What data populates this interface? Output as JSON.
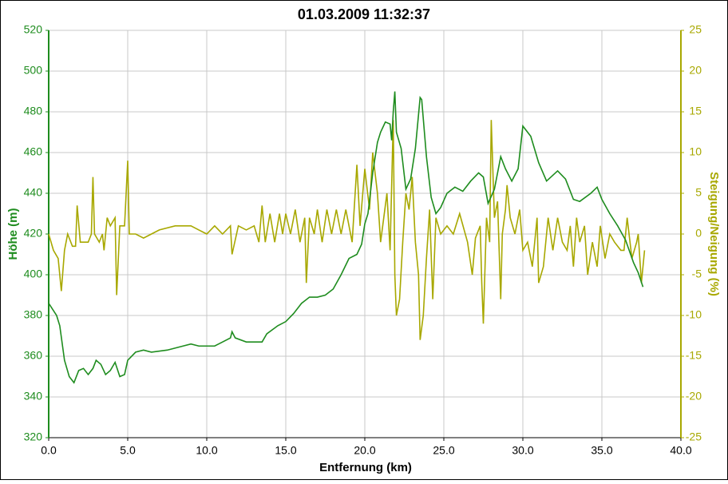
{
  "chart_data": {
    "type": "line",
    "title": "01.03.2009 11:32:37",
    "x_label": "Entfernung (km)",
    "y_label": "Höhe (m)",
    "y2_label": "Steigung/Neigung (%)",
    "grid": true,
    "xlim": [
      0,
      40
    ],
    "xticks": [
      {
        "value": 0,
        "label": "0.0"
      },
      {
        "value": 5,
        "label": "5.0"
      },
      {
        "value": 10,
        "label": "10.0"
      },
      {
        "value": 15,
        "label": "15.0"
      },
      {
        "value": 20,
        "label": "20.0"
      },
      {
        "value": 25,
        "label": "25.0"
      },
      {
        "value": 30,
        "label": "30.0"
      },
      {
        "value": 35,
        "label": "35.0"
      },
      {
        "value": 40,
        "label": "40.0"
      }
    ],
    "ylim": [
      320,
      520
    ],
    "yticks": [
      320,
      340,
      360,
      380,
      400,
      420,
      440,
      460,
      480,
      500,
      520
    ],
    "y2lim": [
      -25,
      25
    ],
    "y2ticks": [
      -25,
      -20,
      -15,
      -10,
      -5,
      0,
      5,
      10,
      15,
      20,
      25
    ],
    "y_color": "#1e8c1e",
    "y2_color": "#a8a800",
    "series": [
      {
        "name": "Höhe",
        "color": "#1e8c1e",
        "x": [
          0,
          0.5,
          0.7,
          1.0,
          1.3,
          1.6,
          1.9,
          2.2,
          2.5,
          2.8,
          3.0,
          3.3,
          3.6,
          3.9,
          4.2,
          4.5,
          4.8,
          5.0,
          5.5,
          6.0,
          6.5,
          7.5,
          8.5,
          9.0,
          9.5,
          10.5,
          11.0,
          11.5,
          11.6,
          11.8,
          12.5,
          13.5,
          13.8,
          14.5,
          15.0,
          15.5,
          16.0,
          16.5,
          17.0,
          17.5,
          18.0,
          18.5,
          19.0,
          19.5,
          19.8,
          20.0,
          20.2,
          20.5,
          20.8,
          21.0,
          21.3,
          21.6,
          21.7,
          21.8,
          21.9,
          22.0,
          22.3,
          22.6,
          22.9,
          23.2,
          23.5,
          23.6,
          23.9,
          24.2,
          24.5,
          24.8,
          25.2,
          25.7,
          26.2,
          26.7,
          27.2,
          27.5,
          27.8,
          28.2,
          28.6,
          28.9,
          29.3,
          29.7,
          30.0,
          30.5,
          31.0,
          31.5,
          32.2,
          32.7,
          33.2,
          33.6,
          34.3,
          34.7,
          35.0,
          35.5,
          36.0,
          36.5,
          37.0,
          37.3,
          37.6
        ],
        "values": [
          386,
          380,
          375,
          358,
          350,
          347,
          353,
          354,
          351,
          354,
          358,
          356,
          351,
          353,
          357,
          350,
          351,
          358,
          362,
          363,
          362,
          363,
          365,
          366,
          365,
          365,
          367,
          369,
          372,
          369,
          367,
          367,
          371,
          375,
          377,
          381,
          386,
          389,
          389,
          390,
          393,
          400,
          408,
          410,
          415,
          425,
          430,
          450,
          465,
          470,
          475,
          474,
          466,
          480,
          490,
          470,
          462,
          442,
          447,
          462,
          487,
          486,
          458,
          438,
          430,
          433,
          440,
          443,
          441,
          446,
          450,
          448,
          435,
          442,
          458,
          452,
          446,
          452,
          473,
          468,
          455,
          446,
          451,
          447,
          437,
          436,
          440,
          443,
          437,
          430,
          424,
          417,
          406,
          401,
          394
        ]
      },
      {
        "name": "Steigung/Neigung",
        "color": "#a8a800",
        "axis": "y2",
        "x": [
          0,
          0.3,
          0.6,
          0.8,
          1.0,
          1.2,
          1.5,
          1.7,
          1.8,
          2.0,
          2.5,
          2.7,
          2.8,
          2.9,
          3.2,
          3.4,
          3.5,
          3.7,
          3.9,
          4.2,
          4.3,
          4.5,
          4.8,
          5.0,
          5.1,
          5.5,
          6.0,
          6.5,
          7.0,
          8.0,
          9.0,
          9.5,
          10.0,
          10.5,
          11.0,
          11.5,
          11.6,
          12.0,
          12.5,
          13.0,
          13.3,
          13.5,
          13.7,
          14.0,
          14.3,
          14.6,
          14.8,
          15.0,
          15.3,
          15.6,
          15.9,
          16.2,
          16.3,
          16.5,
          16.8,
          17.0,
          17.3,
          17.6,
          17.9,
          18.2,
          18.5,
          18.8,
          19.2,
          19.5,
          19.7,
          20.0,
          20.3,
          20.5,
          20.8,
          21.0,
          21.2,
          21.4,
          21.6,
          21.8,
          21.9,
          22.0,
          22.2,
          22.4,
          22.6,
          22.8,
          23.0,
          23.2,
          23.4,
          23.5,
          23.7,
          23.9,
          24.1,
          24.3,
          24.5,
          24.8,
          25.2,
          25.6,
          26.0,
          26.5,
          26.8,
          27.0,
          27.3,
          27.4,
          27.5,
          27.7,
          27.9,
          28.0,
          28.2,
          28.4,
          28.6,
          28.7,
          28.9,
          29.0,
          29.2,
          29.5,
          29.8,
          30.0,
          30.3,
          30.6,
          30.9,
          31.0,
          31.3,
          31.6,
          31.9,
          32.2,
          32.5,
          32.8,
          33.0,
          33.2,
          33.4,
          33.6,
          33.9,
          34.1,
          34.4,
          34.7,
          34.9,
          35.2,
          35.5,
          35.8,
          36.2,
          36.4,
          36.6,
          36.9,
          37.2,
          37.3,
          37.5,
          37.7
        ],
        "values": [
          0,
          -2,
          -3,
          -7,
          -2,
          0,
          -1.5,
          -1.5,
          3.5,
          -1,
          -1,
          0,
          7,
          0,
          -1,
          0,
          -2,
          2,
          1,
          2,
          -7.5,
          1,
          1,
          9,
          0,
          0,
          -0.5,
          0,
          0.5,
          1,
          1,
          0.5,
          0,
          1,
          0,
          1,
          -2.5,
          1,
          0.5,
          1,
          -1,
          3.5,
          -1,
          2.5,
          -1,
          2.5,
          0,
          2.5,
          0,
          3,
          -1,
          2,
          -6,
          2,
          0,
          3,
          -1,
          3,
          0,
          3,
          0,
          3,
          -1,
          8.5,
          1,
          8,
          3,
          10,
          5,
          -1,
          2,
          5,
          -2,
          14,
          -5,
          -10,
          -8,
          -1,
          5,
          3,
          7,
          -1,
          -5,
          -13,
          -10,
          -3,
          3,
          -8,
          2,
          0,
          1,
          0,
          2.5,
          -1,
          -5,
          -0.5,
          1,
          -6,
          -11,
          2,
          -1,
          14,
          2,
          4,
          -8,
          0,
          3,
          6,
          2,
          0,
          3,
          -2,
          -1,
          -4,
          2,
          -6,
          -4,
          2,
          -2,
          2,
          -1,
          -2,
          1,
          -4,
          2,
          -1,
          1,
          -5,
          -1,
          -4,
          1,
          -3,
          0,
          -1,
          -2,
          -2,
          2,
          -3,
          -1,
          0,
          -6,
          -2
        ]
      }
    ]
  }
}
